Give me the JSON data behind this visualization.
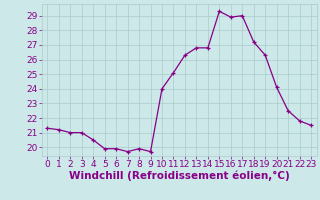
{
  "x": [
    0,
    1,
    2,
    3,
    4,
    5,
    6,
    7,
    8,
    9,
    10,
    11,
    12,
    13,
    14,
    15,
    16,
    17,
    18,
    19,
    20,
    21,
    22,
    23
  ],
  "y": [
    21.3,
    21.2,
    21.0,
    21.0,
    20.5,
    19.9,
    19.9,
    19.7,
    19.9,
    19.7,
    24.0,
    25.1,
    26.3,
    26.8,
    26.8,
    29.3,
    28.9,
    29.0,
    27.2,
    26.3,
    24.1,
    22.5,
    21.8,
    21.5
  ],
  "line_color": "#880088",
  "marker": "+",
  "marker_size": 3,
  "bg_color": "#cce8e8",
  "grid_color": "#aacccc",
  "xlabel": "Windchill (Refroidissement éolien,°C)",
  "xlim": [
    -0.5,
    23.5
  ],
  "ylim": [
    19.4,
    29.8
  ],
  "yticks": [
    20,
    21,
    22,
    23,
    24,
    25,
    26,
    27,
    28,
    29
  ],
  "xticks": [
    0,
    1,
    2,
    3,
    4,
    5,
    6,
    7,
    8,
    9,
    10,
    11,
    12,
    13,
    14,
    15,
    16,
    17,
    18,
    19,
    20,
    21,
    22,
    23
  ],
  "tick_label_color": "#880088",
  "tick_fontsize": 6.5,
  "xlabel_fontsize": 7.5,
  "xlabel_color": "#880088",
  "spine_color": "#aacccc"
}
